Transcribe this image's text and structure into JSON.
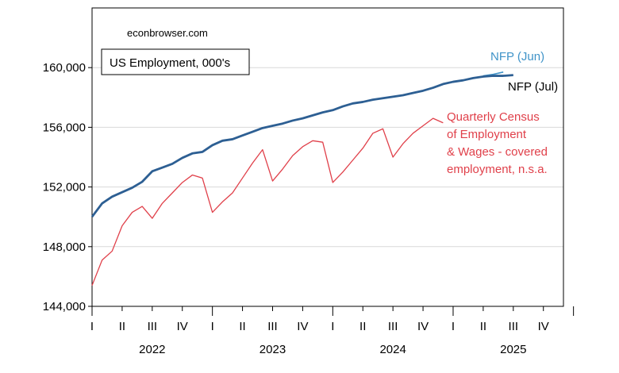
{
  "chart_data": {
    "type": "line",
    "title": "US Employment, 000's",
    "source": "econbrowser.com",
    "xlabel": "",
    "ylabel": "",
    "ylim": [
      144000,
      164000
    ],
    "yticks": [
      144000,
      148000,
      152000,
      156000,
      160000
    ],
    "ytick_labels": [
      "144,000",
      "148,000",
      "152,000",
      "156,000",
      "160,000"
    ],
    "x_start": "2022-01",
    "x_end": "2025-12",
    "quarter_labels": [
      "I",
      "II",
      "III",
      "IV",
      "I",
      "II",
      "III",
      "IV",
      "I",
      "II",
      "III",
      "IV",
      "I",
      "II",
      "III",
      "IV"
    ],
    "year_labels": [
      "2022",
      "2023",
      "2024",
      "2025"
    ],
    "grid": true,
    "series": [
      {
        "name": "NFP (Jul)",
        "color": "#2d5f93",
        "x": [
          "2022-01",
          "2022-02",
          "2022-03",
          "2022-04",
          "2022-05",
          "2022-06",
          "2022-07",
          "2022-08",
          "2022-09",
          "2022-10",
          "2022-11",
          "2022-12",
          "2023-01",
          "2023-02",
          "2023-03",
          "2023-04",
          "2023-05",
          "2023-06",
          "2023-07",
          "2023-08",
          "2023-09",
          "2023-10",
          "2023-11",
          "2023-12",
          "2024-01",
          "2024-02",
          "2024-03",
          "2024-04",
          "2024-05",
          "2024-06",
          "2024-07",
          "2024-08",
          "2024-09",
          "2024-10",
          "2024-11",
          "2024-12",
          "2025-01",
          "2025-02",
          "2025-03",
          "2025-04",
          "2025-05",
          "2025-06",
          "2025-07"
        ],
        "values": [
          150000,
          150900,
          151350,
          151650,
          151950,
          152350,
          153050,
          153300,
          153550,
          153950,
          154250,
          154350,
          154800,
          155100,
          155200,
          155450,
          155700,
          155950,
          156100,
          156250,
          156450,
          156600,
          156800,
          157000,
          157150,
          157400,
          157600,
          157700,
          157850,
          157950,
          158050,
          158150,
          158300,
          158450,
          158650,
          158900,
          159050,
          159150,
          159300,
          159400,
          159450,
          159450,
          159500
        ]
      },
      {
        "name": "NFP (Jun)",
        "color": "#3f93c8",
        "x": [
          "2025-04",
          "2025-05",
          "2025-06"
        ],
        "values": [
          159450,
          159550,
          159700
        ]
      },
      {
        "name": "Quarterly Census of Employment & Wages - covered employment, n.s.a.",
        "color": "#e0404a",
        "x": [
          "2022-01",
          "2022-02",
          "2022-03",
          "2022-04",
          "2022-05",
          "2022-06",
          "2022-07",
          "2022-08",
          "2022-09",
          "2022-10",
          "2022-11",
          "2022-12",
          "2023-01",
          "2023-02",
          "2023-03",
          "2023-04",
          "2023-05",
          "2023-06",
          "2023-07",
          "2023-08",
          "2023-09",
          "2023-10",
          "2023-11",
          "2023-12",
          "2024-01",
          "2024-02",
          "2024-03",
          "2024-04",
          "2024-05",
          "2024-06",
          "2024-07",
          "2024-08",
          "2024-09",
          "2024-10",
          "2024-11",
          "2024-12"
        ],
        "values": [
          145400,
          147100,
          147700,
          149400,
          150300,
          150700,
          149900,
          150900,
          151600,
          152300,
          152800,
          152600,
          150300,
          151000,
          151600,
          152600,
          153600,
          154500,
          152400,
          153200,
          154100,
          154700,
          155100,
          155000,
          152300,
          153000,
          153800,
          154600,
          155600,
          155900,
          154000,
          154900,
          155600,
          156100,
          156600,
          156300
        ]
      }
    ],
    "annotations": {
      "nfp_jun": "NFP (Jun)",
      "nfp_jul": "NFP (Jul)",
      "qcew_lines": [
        "Quarterly Census",
        "of Employment",
        "& Wages - covered",
        "employment, n.s.a."
      ]
    }
  }
}
